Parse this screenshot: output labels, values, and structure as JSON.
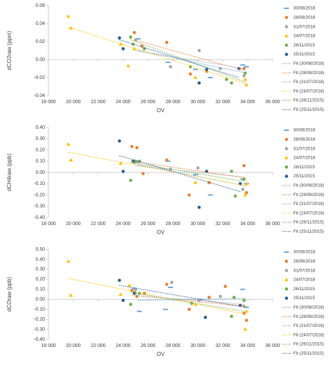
{
  "chart_data": [
    {
      "type": "scatter",
      "ylabel": "dCO2raw (ppm)",
      "xlabel": "OV",
      "xlim": [
        18000,
        36000
      ],
      "xticks": [
        {
          "value": 18000,
          "label": "18 000"
        },
        {
          "value": 20000,
          "label": "20 000"
        },
        {
          "value": 22000,
          "label": "22 000"
        },
        {
          "value": 24000,
          "label": "24 000"
        },
        {
          "value": 26000,
          "label": "26 000"
        },
        {
          "value": 28000,
          "label": "28 000"
        },
        {
          "value": 30000,
          "label": "30 000"
        },
        {
          "value": 32000,
          "label": "32 000"
        },
        {
          "value": 34000,
          "label": "34 000"
        },
        {
          "value": 36000,
          "label": "36 000"
        }
      ],
      "ylim": [
        -0.04,
        0.06
      ],
      "yticks": [
        -0.04,
        -0.02,
        {
          "value": 0,
          "label": "0.00"
        },
        0.02,
        0.04,
        0.06
      ],
      "series": [
        {
          "name": "30/08/2018",
          "color": "#5b9bd5",
          "marker": "dash",
          "x": [
            25200,
            27600,
            29800,
            31000,
            33600,
            33900
          ],
          "values": [
            0.023,
            -0.003,
            -0.011,
            -0.02,
            -0.006,
            -0.008
          ]
        },
        {
          "name": "28/08/2018",
          "color": "#ed7d31",
          "marker": "circle",
          "x": [
            24900,
            25500,
            27500,
            29400,
            30700,
            33700
          ],
          "values": [
            0.03,
            0.015,
            0.019,
            -0.016,
            -0.013,
            -0.01
          ]
        },
        {
          "name": "31/07/2018",
          "color": "#a5a5a5",
          "marker": "circle",
          "x": [
            25000,
            27800,
            30100,
            31800,
            33700
          ],
          "values": [
            0.022,
            -0.008,
            0.01,
            -0.01,
            -0.018
          ]
        },
        {
          "name": "24/07/2018",
          "color": "#ffc000",
          "marker": "triangle",
          "x": [
            19600,
            19800,
            23800,
            24400,
            24900,
            29800,
            33800,
            33900
          ],
          "values": [
            0.048,
            0.035,
            0.017,
            -0.007,
            0.012,
            -0.02,
            -0.022,
            -0.028
          ]
        },
        {
          "name": "26/11/2015",
          "color": "#70ad47",
          "marker": "circle",
          "x": [
            24600,
            24800,
            25700,
            29400,
            32300,
            32700,
            33800
          ],
          "values": [
            0.025,
            0.017,
            0.012,
            -0.008,
            -0.022,
            -0.026,
            -0.015
          ]
        },
        {
          "name": "25/11/2015",
          "color": "#255e91",
          "marker": "circle",
          "x": [
            23700,
            24000,
            30100,
            30700,
            33300
          ],
          "values": [
            0.024,
            0.012,
            -0.026,
            -0.011,
            -0.01
          ]
        },
        {
          "name": "Fit (30/08/2018)",
          "color": "#5b9bd5",
          "line": "dotted",
          "x": [
            25200,
            33900
          ],
          "values": [
            0.01,
            -0.015
          ]
        },
        {
          "name": "Fit (28/08/2018)",
          "color": "#ed7d31",
          "line": "dotted",
          "x": [
            24900,
            33700
          ],
          "values": [
            0.022,
            -0.012
          ]
        },
        {
          "name": "Fit (31/07/2018)",
          "color": "#a5a5a5",
          "line": "dotted",
          "x": [
            25000,
            33700
          ],
          "values": [
            0.01,
            -0.01
          ]
        },
        {
          "name": "Fit (24/07/2018)",
          "color": "#ffc000",
          "line": "dotted",
          "x": [
            19600,
            33900
          ],
          "values": [
            0.036,
            -0.027
          ]
        },
        {
          "name": "Fit (26/11/2015)",
          "color": "#70ad47",
          "line": "dotted",
          "x": [
            24600,
            33800
          ],
          "values": [
            0.022,
            -0.025
          ]
        },
        {
          "name": "Fit (25/11/2015)",
          "color": "#255e91",
          "line": "dotted",
          "x": [
            23700,
            33300
          ],
          "values": [
            0.022,
            -0.02
          ]
        }
      ]
    },
    {
      "type": "scatter",
      "ylabel": "dCH4raw (ppb)",
      "xlabel": "OV",
      "xlim": [
        18000,
        36000
      ],
      "xticks": [
        {
          "value": 18000,
          "label": "18 000"
        },
        {
          "value": 20000,
          "label": "20 000"
        },
        {
          "value": 22000,
          "label": "22 000"
        },
        {
          "value": 24000,
          "label": "24 000"
        },
        {
          "value": 26000,
          "label": "26 000"
        },
        {
          "value": 28000,
          "label": "28 000"
        },
        {
          "value": 30000,
          "label": "30 000"
        },
        {
          "value": 32000,
          "label": "32 000"
        },
        {
          "value": 34000,
          "label": "34 000"
        },
        {
          "value": 36000,
          "label": "36 000"
        }
      ],
      "ylim": [
        -0.4,
        0.4
      ],
      "yticks": [
        {
          "value": -0.4,
          "label": "-0.40"
        },
        {
          "value": -0.3,
          "label": "-0.30"
        },
        {
          "value": -0.2,
          "label": "-0.20"
        },
        {
          "value": -0.1,
          "label": "-0.10"
        },
        {
          "value": 0,
          "label": "0.00"
        },
        {
          "value": 0.1,
          "label": "0.10"
        },
        {
          "value": 0.2,
          "label": "0.20"
        },
        {
          "value": 0.3,
          "label": "0.30"
        },
        {
          "value": 0.4,
          "label": "0.40"
        }
      ],
      "series": [
        {
          "name": "30/08/2018",
          "color": "#5b9bd5",
          "marker": "dash",
          "x": [
            25200,
            27600,
            29800,
            31000,
            33600,
            33900
          ],
          "values": [
            0.09,
            0.1,
            -0.02,
            -0.2,
            -0.06,
            -0.1
          ]
        },
        {
          "name": "28/08/2018",
          "color": "#ed7d31",
          "marker": "circle",
          "x": [
            24700,
            25100,
            25600,
            27500,
            29300,
            30900,
            33700,
            33900
          ],
          "values": [
            0.23,
            0.22,
            -0.01,
            0.11,
            -0.2,
            -0.09,
            0.06,
            -0.18
          ]
        },
        {
          "name": "31/07/2018",
          "color": "#a5a5a5",
          "marker": "circle",
          "x": [
            25000,
            27800,
            30000,
            33600
          ],
          "values": [
            0.1,
            0.03,
            0.04,
            -0.15
          ]
        },
        {
          "name": "24/07/2018",
          "color": "#ffc000",
          "marker": "triangle",
          "x": [
            19600,
            19800,
            23800,
            29800,
            33800,
            33900
          ],
          "values": [
            0.25,
            0.11,
            0.08,
            -0.09,
            -0.2,
            -0.1
          ]
        },
        {
          "name": "26/11/2015",
          "color": "#70ad47",
          "marker": "circle",
          "x": [
            24600,
            24900,
            25300,
            32700,
            33000,
            33700
          ],
          "values": [
            -0.07,
            0.09,
            0.1,
            0.01,
            -0.21,
            -0.06
          ]
        },
        {
          "name": "25/11/2015",
          "color": "#255e91",
          "marker": "circle",
          "x": [
            23700,
            24000,
            24800,
            30100,
            30700,
            33400
          ],
          "values": [
            0.28,
            0.01,
            0.1,
            -0.31,
            0.01,
            -0.1
          ]
        },
        {
          "name": "Fit (30/08/2018)",
          "color": "#5b9bd5",
          "line": "dotted",
          "x": [
            25200,
            33900
          ],
          "values": [
            0.07,
            -0.12
          ]
        },
        {
          "name": "Fit (28/08/2018)",
          "color": "#ed7d31",
          "line": "dotted",
          "x": [
            24700,
            33900
          ],
          "values": [
            0.1,
            -0.05
          ]
        },
        {
          "name": "Fit (31/07/2018)",
          "color": "#a5a5a5",
          "line": "dotted",
          "x": [
            25000,
            33600
          ],
          "values": [
            0.06,
            -0.04
          ]
        },
        {
          "name": "Fit (24/07/2018)",
          "color": "#ffc000",
          "line": "dotted",
          "x": [
            19600,
            33900
          ],
          "values": [
            0.18,
            -0.12
          ]
        },
        {
          "name": "Fit (26/11/2015)",
          "color": "#70ad47",
          "line": "dotted",
          "x": [
            24600,
            33700
          ],
          "values": [
            0.09,
            -0.08
          ]
        },
        {
          "name": "Fit (25/11/2015)",
          "color": "#255e91",
          "line": "dotted",
          "x": [
            23700,
            33400
          ],
          "values": [
            0.15,
            -0.17
          ]
        }
      ]
    },
    {
      "type": "scatter",
      "ylabel": "dCOraw (ppb)",
      "xlabel": "OV",
      "xlim": [
        18000,
        36000
      ],
      "xticks": [
        {
          "value": 18000,
          "label": "18 000"
        },
        {
          "value": 20000,
          "label": "20 000"
        },
        {
          "value": 22000,
          "label": "22 000"
        },
        {
          "value": 24000,
          "label": "24 000"
        },
        {
          "value": 26000,
          "label": "26 000"
        },
        {
          "value": 28000,
          "label": "28 000"
        },
        {
          "value": 30000,
          "label": "30 000"
        },
        {
          "value": 32000,
          "label": "32 000"
        },
        {
          "value": 34000,
          "label": "34 000"
        },
        {
          "value": 36000,
          "label": "36 000"
        }
      ],
      "ylim": [
        -0.4,
        0.5
      ],
      "yticks": [
        {
          "value": -0.4,
          "label": "-0.40"
        },
        {
          "value": -0.3,
          "label": "-0.30"
        },
        {
          "value": -0.2,
          "label": "-0.20"
        },
        {
          "value": -0.1,
          "label": "-0.10"
        },
        {
          "value": 0,
          "label": "0.00"
        },
        {
          "value": 0.1,
          "label": "0.10"
        },
        {
          "value": 0.2,
          "label": "0.20"
        },
        {
          "value": 0.3,
          "label": "0.30"
        },
        {
          "value": 0.4,
          "label": "0.40"
        },
        {
          "value": 0.5,
          "label": "0.50"
        }
      ],
      "series": [
        {
          "name": "30/08/2018",
          "color": "#5b9bd5",
          "marker": "dash",
          "x": [
            24900,
            25300,
            27400,
            27800,
            30200,
            33600,
            33900
          ],
          "values": [
            0.11,
            -0.12,
            -0.1,
            0.12,
            0.0,
            0.1,
            -0.08
          ]
        },
        {
          "name": "28/08/2018",
          "color": "#ed7d31",
          "marker": "circle",
          "x": [
            24700,
            25100,
            25700,
            27500,
            29300,
            30900,
            32200,
            33700,
            33900
          ],
          "values": [
            0.09,
            0.03,
            0.06,
            0.15,
            -0.1,
            0.02,
            0.13,
            -0.14,
            -0.21
          ]
        },
        {
          "name": "31/07/2018",
          "color": "#a5a5a5",
          "marker": "circle",
          "x": [
            25000,
            27900,
            30100,
            31800,
            33700
          ],
          "values": [
            0.1,
            0.17,
            -0.01,
            0.03,
            -0.07
          ]
        },
        {
          "name": "24/07/2018",
          "color": "#ffc000",
          "marker": "triangle",
          "x": [
            19600,
            19800,
            23800,
            24500,
            29800,
            33800,
            33900
          ],
          "values": [
            0.38,
            0.04,
            0.05,
            0.14,
            -0.05,
            -0.3,
            -0.12
          ]
        },
        {
          "name": "26/11/2015",
          "color": "#70ad47",
          "marker": "circle",
          "x": [
            24600,
            24900,
            25300,
            29500,
            32700,
            32900,
            33700
          ],
          "values": [
            -0.05,
            0.07,
            0.06,
            -0.04,
            -0.17,
            0.02,
            -0.01
          ]
        },
        {
          "name": "25/11/2015",
          "color": "#255e91",
          "marker": "circle",
          "x": [
            23700,
            24000,
            24900,
            30600,
            33400
          ],
          "values": [
            0.19,
            -0.01,
            0.06,
            -0.18,
            -0.06
          ]
        },
        {
          "name": "Fit (30/08/2018)",
          "color": "#5b9bd5",
          "line": "dotted",
          "x": [
            25200,
            33900
          ],
          "values": [
            -0.01,
            0.01
          ]
        },
        {
          "name": "Fit (28/08/2018)",
          "color": "#ed7d31",
          "line": "dotted",
          "x": [
            24700,
            33900
          ],
          "values": [
            0.04,
            -0.07
          ]
        },
        {
          "name": "Fit (31/07/2018)",
          "color": "#a5a5a5",
          "line": "dotted",
          "x": [
            25000,
            33700
          ],
          "values": [
            0.04,
            -0.05
          ]
        },
        {
          "name": "Fit (24/07/2018)",
          "color": "#ffc000",
          "line": "dotted",
          "x": [
            19600,
            33900
          ],
          "values": [
            0.21,
            -0.15
          ]
        },
        {
          "name": "Fit (26/11/2015)",
          "color": "#70ad47",
          "line": "dotted",
          "x": [
            24600,
            33700
          ],
          "values": [
            0.07,
            -0.12
          ]
        },
        {
          "name": "Fit (25/11/2015)",
          "color": "#255e91",
          "line": "dotted",
          "x": [
            23700,
            33400
          ],
          "values": [
            0.14,
            -0.07
          ]
        }
      ]
    }
  ]
}
